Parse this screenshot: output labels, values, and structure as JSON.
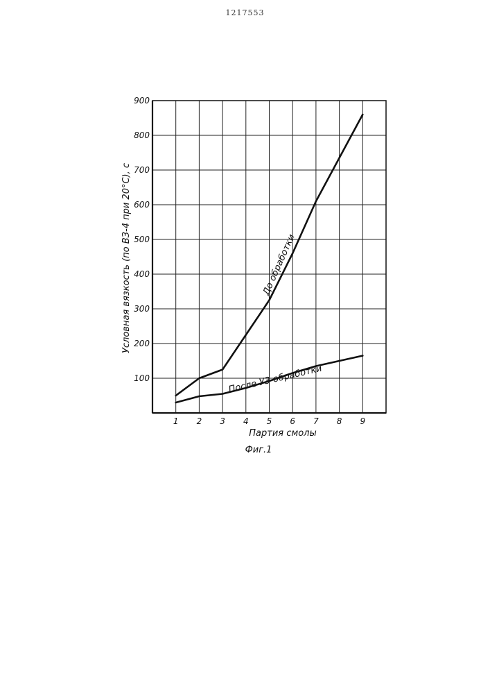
{
  "document": {
    "number": "1217553"
  },
  "chart_data": {
    "type": "line",
    "caption": "Фиг.1",
    "xlabel": "Партия смолы",
    "ylabel": "Условная вязкость (по ВЗ-4 при 20°С), с",
    "x": [
      1,
      2,
      3,
      4,
      5,
      6,
      7,
      8,
      9
    ],
    "x_ticks": [
      "1",
      "2",
      "3",
      "4",
      "5",
      "6",
      "7",
      "8",
      "9"
    ],
    "xlim": [
      0,
      10
    ],
    "y_ticks": [
      "100",
      "200",
      "300",
      "400",
      "500",
      "600",
      "700",
      "800",
      "900"
    ],
    "ylim": [
      0,
      900
    ],
    "grid": true,
    "series": [
      {
        "name": "До обработки",
        "values": [
          50,
          100,
          125,
          225,
          325,
          460,
          610,
          735,
          860
        ]
      },
      {
        "name": "После УЗ обработки",
        "values": [
          30,
          48,
          55,
          72,
          92,
          115,
          135,
          150,
          165
        ]
      }
    ],
    "colors": {
      "line": "#111111",
      "grid": "#222222",
      "background": "#ffffff"
    }
  }
}
